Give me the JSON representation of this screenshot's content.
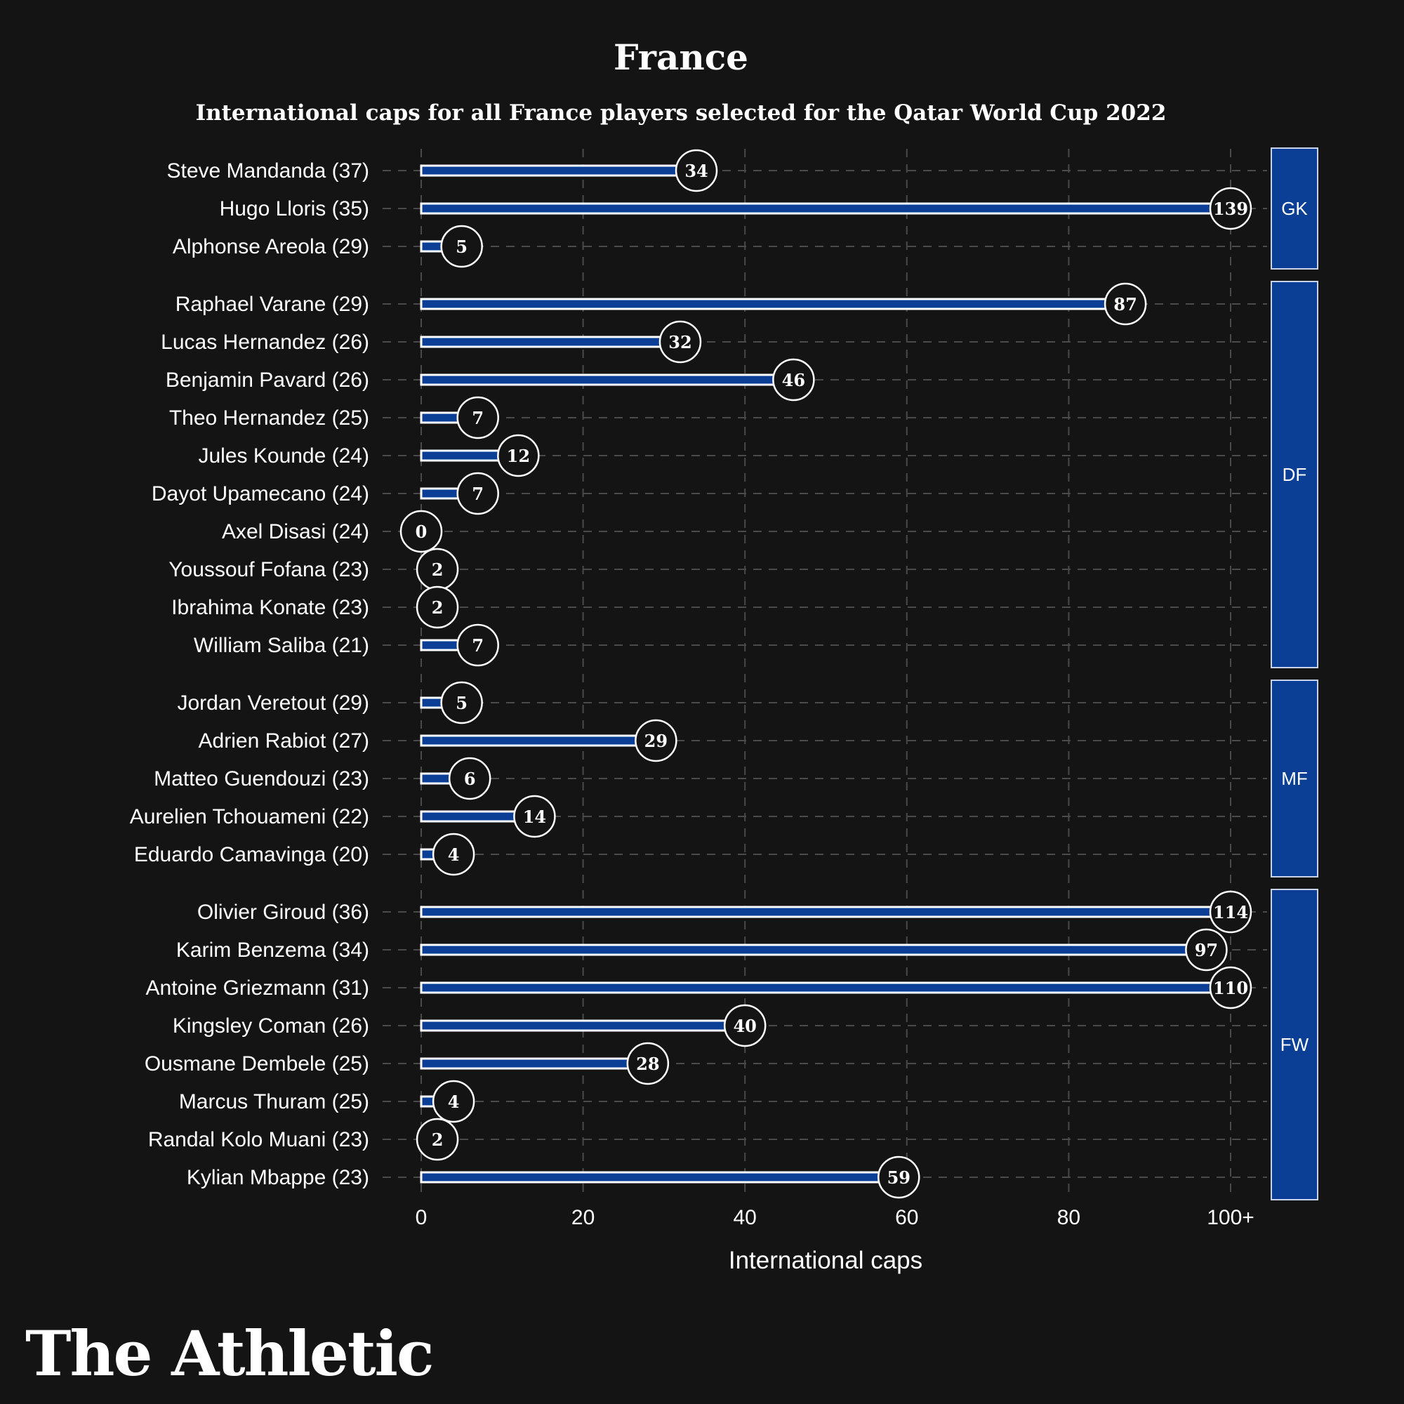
{
  "title": "France",
  "subtitle": "International caps for all France players selected for the Qatar World Cup 2022",
  "brand": "The Athletic",
  "colors": {
    "background": "#141414",
    "bar": "#0b3f96",
    "bar_outline": "#ffffff",
    "group_box": "#0b3f96",
    "grid": "#4a4a4a",
    "text": "#ffffff"
  },
  "chart_data": {
    "type": "bar",
    "orientation": "horizontal",
    "xlabel": "International caps",
    "xlim": [
      0,
      100
    ],
    "xticks": [
      0,
      20,
      40,
      60,
      80,
      100
    ],
    "xtick_labels": [
      "0",
      "20",
      "40",
      "60",
      "80",
      "100+"
    ],
    "grid": true,
    "groups": [
      {
        "label": "GK",
        "players": [
          {
            "name": "Steve Mandanda (37)",
            "caps": 34
          },
          {
            "name": "Hugo Lloris (35)",
            "caps": 139
          },
          {
            "name": "Alphonse Areola (29)",
            "caps": 5
          }
        ]
      },
      {
        "label": "DF",
        "players": [
          {
            "name": "Raphael Varane (29)",
            "caps": 87
          },
          {
            "name": "Lucas Hernandez (26)",
            "caps": 32
          },
          {
            "name": "Benjamin Pavard (26)",
            "caps": 46
          },
          {
            "name": "Theo Hernandez (25)",
            "caps": 7
          },
          {
            "name": "Jules Kounde (24)",
            "caps": 12
          },
          {
            "name": "Dayot Upamecano (24)",
            "caps": 7
          },
          {
            "name": "Axel Disasi (24)",
            "caps": 0
          },
          {
            "name": "Youssouf Fofana (23)",
            "caps": 2
          },
          {
            "name": "Ibrahima Konate (23)",
            "caps": 2
          },
          {
            "name": "William Saliba (21)",
            "caps": 7
          }
        ]
      },
      {
        "label": "MF",
        "players": [
          {
            "name": "Jordan Veretout (29)",
            "caps": 5
          },
          {
            "name": "Adrien Rabiot (27)",
            "caps": 29
          },
          {
            "name": "Matteo Guendouzi (23)",
            "caps": 6
          },
          {
            "name": "Aurelien Tchouameni (22)",
            "caps": 14
          },
          {
            "name": "Eduardo Camavinga (20)",
            "caps": 4
          }
        ]
      },
      {
        "label": "FW",
        "players": [
          {
            "name": "Olivier Giroud (36)",
            "caps": 114
          },
          {
            "name": "Karim Benzema (34)",
            "caps": 97
          },
          {
            "name": "Antoine Griezmann (31)",
            "caps": 110
          },
          {
            "name": "Kingsley Coman (26)",
            "caps": 40
          },
          {
            "name": "Ousmane Dembele (25)",
            "caps": 28
          },
          {
            "name": "Marcus Thuram (25)",
            "caps": 4
          },
          {
            "name": "Randal Kolo Muani (23)",
            "caps": 2
          },
          {
            "name": "Kylian Mbappe (23)",
            "caps": 59
          }
        ]
      }
    ]
  }
}
